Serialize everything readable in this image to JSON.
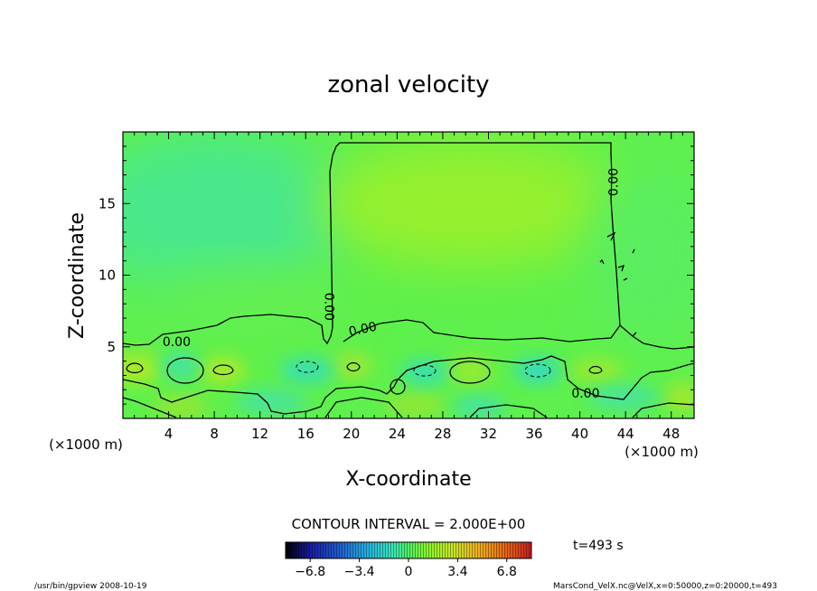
{
  "chart_data": {
    "type": "heatmap",
    "title": "zonal velocity",
    "xlabel": "X-coordinate",
    "ylabel": "Z-coordinate",
    "x_unit_left": "(×1000 m)",
    "x_unit_right": "(×1000 m)",
    "xlim": [
      0,
      50
    ],
    "ylim": [
      0,
      20
    ],
    "x_ticks": [
      4,
      8,
      12,
      16,
      20,
      24,
      28,
      32,
      36,
      40,
      44,
      48
    ],
    "y_ticks": [
      5,
      10,
      15
    ],
    "contour_labels": [
      {
        "text": "0.00",
        "x": 4.7,
        "z": 5.3,
        "angle": 0
      },
      {
        "text": "0.00",
        "x": 18.0,
        "z": 7.8,
        "angle": 90
      },
      {
        "text": "0.00",
        "x": 21.0,
        "z": 6.2,
        "angle": -12
      },
      {
        "text": "0.00",
        "x": 43.0,
        "z": 16.5,
        "angle": -90
      },
      {
        "text": "0.00",
        "x": 40.5,
        "z": 1.7,
        "angle": 0
      }
    ],
    "contour_interval_text": "CONTOUR INTERVAL = 2.000E+00",
    "time_text": "t=493 s",
    "colorbar": {
      "ticks": [
        "−6.8",
        "−3.4",
        "0",
        "3.4",
        "6.8"
      ],
      "range": [
        -8.5,
        8.5
      ],
      "colors": [
        "#000000",
        "#1a1aa0",
        "#1e5fd0",
        "#28b4e0",
        "#3ce6b4",
        "#50f064",
        "#8cf528",
        "#c8e628",
        "#f0b41e",
        "#e66414",
        "#c81e1e"
      ]
    }
  },
  "footer": {
    "left": "/usr/bin/gpview  2008-10-19",
    "right": "MarsCond_VelX.nc@VelX,x=0:50000,z=0:20000,t=493"
  },
  "colors": {
    "background": "#ffffff",
    "field_green": "#5ef04c",
    "field_cyan": "#4ceb90",
    "field_yellow": "#a8f02e"
  }
}
